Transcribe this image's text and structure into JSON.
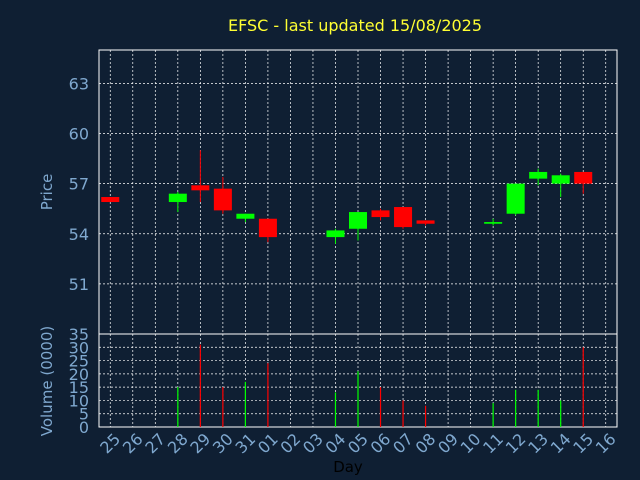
{
  "title": "EFSC - last updated 15/08/2025",
  "colors": {
    "background": "#0f1f33",
    "grid": "#ffffff",
    "up": "#00ff00",
    "down": "#ff0000",
    "title": "#ffff33",
    "axis_text": "#7fa8cf",
    "xlabel": "#000000"
  },
  "chart_data": [
    {
      "type": "candlestick",
      "ylabel": "Price",
      "ylim": [
        48,
        65
      ],
      "yticks": [
        51,
        54,
        57,
        60,
        63
      ],
      "grid": true,
      "x": [
        "25",
        "26",
        "27",
        "28",
        "29",
        "30",
        "31",
        "01",
        "02",
        "03",
        "04",
        "05",
        "06",
        "07",
        "08",
        "09",
        "10",
        "11",
        "12",
        "13",
        "14",
        "15",
        "16"
      ],
      "candles": [
        {
          "day": "25",
          "open": 56.2,
          "high": 56.2,
          "low": 55.9,
          "close": 55.9
        },
        {
          "day": "28",
          "open": 55.9,
          "high": 56.5,
          "low": 55.3,
          "close": 56.4
        },
        {
          "day": "29",
          "open": 56.9,
          "high": 59.0,
          "low": 55.9,
          "close": 56.6
        },
        {
          "day": "30",
          "open": 56.7,
          "high": 57.4,
          "low": 55.2,
          "close": 55.4
        },
        {
          "day": "31",
          "open": 54.9,
          "high": 55.2,
          "low": 54.7,
          "close": 55.2
        },
        {
          "day": "01",
          "open": 54.9,
          "high": 54.9,
          "low": 53.5,
          "close": 53.8
        },
        {
          "day": "04",
          "open": 53.8,
          "high": 54.3,
          "low": 53.4,
          "close": 54.2
        },
        {
          "day": "05",
          "open": 54.3,
          "high": 55.3,
          "low": 53.6,
          "close": 55.3
        },
        {
          "day": "06",
          "open": 55.4,
          "high": 55.5,
          "low": 54.8,
          "close": 55.0
        },
        {
          "day": "07",
          "open": 55.6,
          "high": 55.6,
          "low": 54.3,
          "close": 54.4
        },
        {
          "day": "08",
          "open": 54.8,
          "high": 54.8,
          "low": 54.5,
          "close": 54.6
        },
        {
          "day": "11",
          "open": 54.6,
          "high": 54.9,
          "low": 54.5,
          "close": 54.7
        },
        {
          "day": "12",
          "open": 55.2,
          "high": 57.0,
          "low": 55.1,
          "close": 57.0
        },
        {
          "day": "13",
          "open": 57.3,
          "high": 57.9,
          "low": 56.9,
          "close": 57.7
        },
        {
          "day": "14",
          "open": 57.0,
          "high": 57.6,
          "low": 56.2,
          "close": 57.5
        },
        {
          "day": "15",
          "open": 57.7,
          "high": 57.7,
          "low": 56.4,
          "close": 57.0
        }
      ]
    },
    {
      "type": "bar",
      "ylabel": "Volume (0000)",
      "ylim": [
        0,
        35
      ],
      "yticks": [
        0,
        5,
        10,
        15,
        20,
        25,
        30,
        35
      ],
      "xlabel": "Day",
      "grid": true,
      "bars": [
        {
          "day": "28",
          "value": 15,
          "direction": "up"
        },
        {
          "day": "29",
          "value": 31,
          "direction": "down"
        },
        {
          "day": "30",
          "value": 15,
          "direction": "down"
        },
        {
          "day": "31",
          "value": 17,
          "direction": "up"
        },
        {
          "day": "01",
          "value": 24,
          "direction": "down"
        },
        {
          "day": "04",
          "value": 13,
          "direction": "up"
        },
        {
          "day": "05",
          "value": 21,
          "direction": "up"
        },
        {
          "day": "06",
          "value": 15,
          "direction": "down"
        },
        {
          "day": "07",
          "value": 10,
          "direction": "down"
        },
        {
          "day": "08",
          "value": 8,
          "direction": "down"
        },
        {
          "day": "11",
          "value": 9,
          "direction": "up"
        },
        {
          "day": "12",
          "value": 14,
          "direction": "up"
        },
        {
          "day": "13",
          "value": 14,
          "direction": "up"
        },
        {
          "day": "14",
          "value": 10,
          "direction": "up"
        },
        {
          "day": "15",
          "value": 30,
          "direction": "down"
        }
      ]
    }
  ]
}
